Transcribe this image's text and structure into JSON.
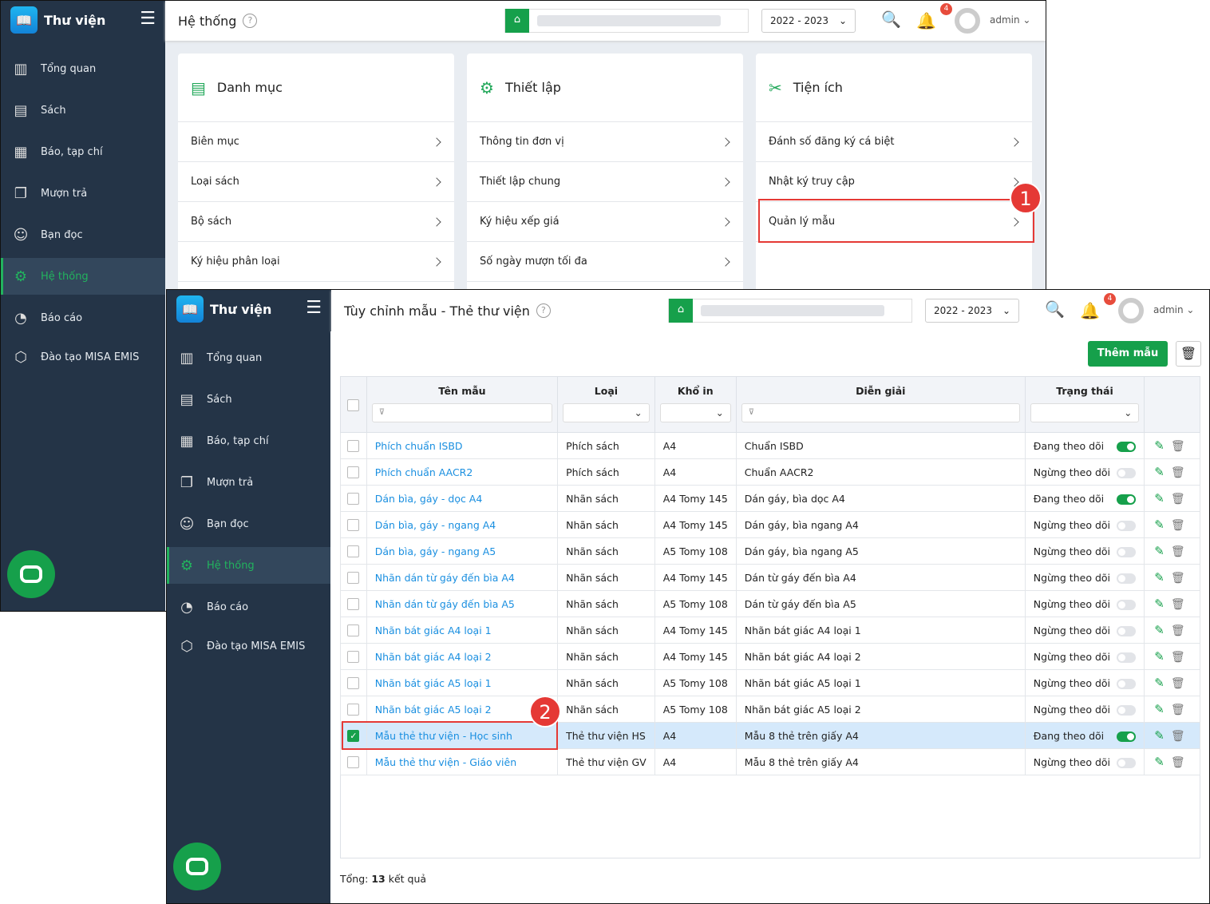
{
  "app": {
    "name": "Thư viện",
    "year": "2022 - 2023",
    "user": "admin",
    "notifications": "4"
  },
  "sidebar": [
    {
      "icon": "chart-icon",
      "label": "Tổng quan"
    },
    {
      "icon": "book-icon",
      "label": "Sách"
    },
    {
      "icon": "newspaper-icon",
      "label": "Báo, tạp chí"
    },
    {
      "icon": "borrow-icon",
      "label": "Mượn trả"
    },
    {
      "icon": "reader-icon",
      "label": "Bạn đọc"
    },
    {
      "icon": "gear-icon",
      "label": "Hệ thống",
      "active": true
    },
    {
      "icon": "report-icon",
      "label": "Báo cáo"
    },
    {
      "icon": "box-icon",
      "label": "Đào tạo MISA EMIS"
    }
  ],
  "back": {
    "title": "Hệ thống",
    "cards": [
      {
        "title": "Danh mục",
        "icon": "folder-icon",
        "items": [
          "Biên mục",
          "Loại sách",
          "Bộ sách",
          "Ký hiệu phân loại"
        ]
      },
      {
        "title": "Thiết lập",
        "icon": "gear-icon",
        "items": [
          "Thông tin đơn vị",
          "Thiết lập chung",
          "Ký hiệu xếp giá",
          "Số ngày mượn tối đa"
        ]
      },
      {
        "title": "Tiện ích",
        "icon": "tools-icon",
        "items": [
          "Đánh số đăng ký cá biệt",
          "Nhật ký truy cập",
          "Quản lý mẫu"
        ]
      }
    ],
    "step": "1"
  },
  "front": {
    "title": "Tùy chỉnh mẫu - Thẻ thư viện",
    "add_button": "Thêm mẫu",
    "step": "2",
    "columns": [
      "Tên mẫu",
      "Loại",
      "Khổ in",
      "Diễn giải",
      "Trạng thái"
    ],
    "rows": [
      {
        "name": "Phích chuẩn ISBD",
        "type": "Phích sách",
        "size": "A4",
        "desc": "Chuẩn ISBD",
        "status": "Đang theo dõi",
        "on": true
      },
      {
        "name": "Phích chuẩn AACR2",
        "type": "Phích sách",
        "size": "A4",
        "desc": "Chuẩn AACR2",
        "status": "Ngừng theo dõi",
        "on": false
      },
      {
        "name": "Dán bìa, gáy - dọc A4",
        "type": "Nhãn sách",
        "size": "A4 Tomy 145",
        "desc": "Dán gáy, bìa dọc A4",
        "status": "Đang theo dõi",
        "on": true
      },
      {
        "name": "Dán bìa, gáy - ngang A4",
        "type": "Nhãn sách",
        "size": "A4 Tomy 145",
        "desc": "Dán gáy, bìa ngang A4",
        "status": "Ngừng theo dõi",
        "on": false
      },
      {
        "name": "Dán bìa, gáy - ngang A5",
        "type": "Nhãn sách",
        "size": "A5 Tomy 108",
        "desc": "Dán gáy, bìa ngang A5",
        "status": "Ngừng theo dõi",
        "on": false
      },
      {
        "name": "Nhãn dán từ gáy đến bìa A4",
        "type": "Nhãn sách",
        "size": "A4 Tomy 145",
        "desc": "Dán từ gáy đến bìa A4",
        "status": "Ngừng theo dõi",
        "on": false
      },
      {
        "name": "Nhãn dán từ gáy đến bìa A5",
        "type": "Nhãn sách",
        "size": "A5 Tomy 108",
        "desc": "Dán từ gáy đến bìa A5",
        "status": "Ngừng theo dõi",
        "on": false
      },
      {
        "name": "Nhãn bát giác A4 loại 1",
        "type": "Nhãn sách",
        "size": "A4 Tomy 145",
        "desc": "Nhãn bát giác A4 loại 1",
        "status": "Ngừng theo dõi",
        "on": false
      },
      {
        "name": "Nhãn bát giác A4 loại 2",
        "type": "Nhãn sách",
        "size": "A4 Tomy 145",
        "desc": "Nhãn bát giác A4 loại 2",
        "status": "Ngừng theo dõi",
        "on": false
      },
      {
        "name": "Nhãn bát giác A5 loại 1",
        "type": "Nhãn sách",
        "size": "A5 Tomy 108",
        "desc": "Nhãn bát giác A5 loại 1",
        "status": "Ngừng theo dõi",
        "on": false
      },
      {
        "name": "Nhãn bát giác A5 loại 2",
        "type": "Nhãn sách",
        "size": "A5 Tomy 108",
        "desc": "Nhãn bát giác A5 loại 2",
        "status": "Ngừng theo dõi",
        "on": false
      },
      {
        "name": "Mẫu thẻ thư viện - Học sinh",
        "type": "Thẻ thư viện HS",
        "size": "A4",
        "desc": "Mẫu 8 thẻ trên giấy A4",
        "status": "Đang theo dõi",
        "on": true,
        "selected": true
      },
      {
        "name": "Mẫu thẻ thư viện - Giáo viên",
        "type": "Thẻ thư viện GV",
        "size": "A4",
        "desc": "Mẫu 8 thẻ trên giấy A4",
        "status": "Ngừng theo dõi",
        "on": false
      }
    ],
    "total_label": "Tổng:",
    "total": "13",
    "total_suffix": "kết quả"
  }
}
